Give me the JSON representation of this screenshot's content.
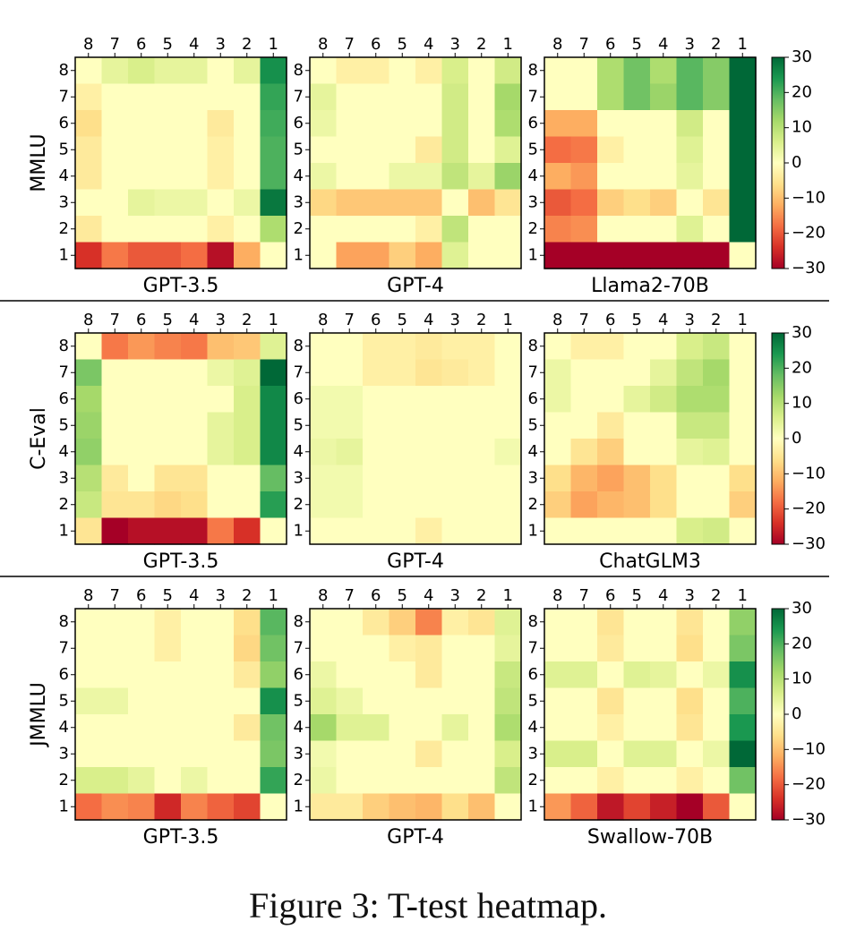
{
  "caption": "Figure 3: T-test heatmap.",
  "chart_data": {
    "type": "heatmap",
    "x_tick_labels": [
      "8",
      "7",
      "6",
      "5",
      "4",
      "3",
      "2",
      "1"
    ],
    "y_tick_labels": [
      "8",
      "7",
      "6",
      "5",
      "4",
      "3",
      "2",
      "1"
    ],
    "colormap": "RdYlGn",
    "colorbar": {
      "vmin": -30,
      "vmax": 30,
      "ticks": [
        30,
        20,
        10,
        0,
        -10,
        -20,
        -30
      ]
    },
    "rows": [
      {
        "ylabel": "MMLU",
        "panels": [
          {
            "title": "GPT-3.5",
            "values": [
              [
                0,
                4,
                6,
                4,
                4,
                0,
                4,
                25
              ],
              [
                -3,
                0,
                0,
                0,
                0,
                0,
                0,
                22
              ],
              [
                -6,
                0,
                0,
                0,
                0,
                -4,
                0,
                21
              ],
              [
                -4,
                0,
                0,
                0,
                0,
                -3,
                0,
                20
              ],
              [
                -4,
                0,
                0,
                0,
                0,
                -3,
                0,
                20
              ],
              [
                0,
                0,
                4,
                3,
                3,
                0,
                3,
                28
              ],
              [
                -4,
                0,
                0,
                0,
                0,
                -3,
                0,
                11
              ],
              [
                -24,
                -17,
                -20,
                -20,
                -18,
                -28,
                -12,
                0
              ]
            ]
          },
          {
            "title": "GPT-4",
            "values": [
              [
                0,
                -3,
                -3,
                0,
                -3,
                6,
                0,
                7
              ],
              [
                4,
                0,
                0,
                0,
                0,
                7,
                0,
                12
              ],
              [
                3,
                0,
                0,
                0,
                0,
                7,
                0,
                11
              ],
              [
                0,
                0,
                0,
                0,
                -4,
                7,
                0,
                5
              ],
              [
                3,
                0,
                0,
                3,
                3,
                9,
                4,
                13
              ],
              [
                -7,
                -9,
                -9,
                -9,
                -9,
                0,
                -10,
                -5
              ],
              [
                0,
                0,
                0,
                0,
                -3,
                9,
                0,
                0
              ],
              [
                0,
                -13,
                -13,
                -8,
                -12,
                5,
                0,
                0
              ]
            ]
          },
          {
            "title": "Llama2-70B",
            "values": [
              [
                0,
                0,
                11,
                17,
                11,
                19,
                15,
                30
              ],
              [
                0,
                0,
                11,
                17,
                13,
                19,
                15,
                30
              ],
              [
                -12,
                -12,
                0,
                0,
                0,
                7,
                0,
                30
              ],
              [
                -18,
                -17,
                -3,
                0,
                0,
                5,
                0,
                30
              ],
              [
                -12,
                -14,
                0,
                0,
                0,
                4,
                0,
                30
              ],
              [
                -20,
                -18,
                -8,
                -6,
                -8,
                0,
                -5,
                30
              ],
              [
                -16,
                -15,
                0,
                0,
                0,
                5,
                0,
                30
              ],
              [
                -30,
                -30,
                -30,
                -30,
                -30,
                -30,
                -30,
                0
              ]
            ]
          }
        ]
      },
      {
        "ylabel": "C-Eval",
        "panels": [
          {
            "title": "GPT-3.5",
            "values": [
              [
                0,
                -17,
                -14,
                -16,
                -17,
                -10,
                -9,
                5
              ],
              [
                16,
                0,
                0,
                0,
                0,
                3,
                5,
                30
              ],
              [
                12,
                0,
                0,
                0,
                0,
                0,
                6,
                26
              ],
              [
                13,
                0,
                0,
                0,
                0,
                4,
                6,
                26
              ],
              [
                14,
                0,
                0,
                0,
                0,
                4,
                6,
                26
              ],
              [
                10,
                -4,
                0,
                -5,
                -5,
                0,
                0,
                18
              ],
              [
                8,
                -5,
                -5,
                -7,
                -6,
                0,
                0,
                23
              ],
              [
                -5,
                -30,
                -28,
                -28,
                -28,
                -17,
                -24,
                0
              ]
            ]
          },
          {
            "title": "GPT-4",
            "values": [
              [
                0,
                0,
                -3,
                -3,
                -4,
                -3,
                -3,
                0
              ],
              [
                0,
                0,
                -3,
                -3,
                -5,
                -4,
                -3,
                0
              ],
              [
                2,
                2,
                0,
                0,
                0,
                0,
                0,
                0
              ],
              [
                2,
                2,
                0,
                0,
                0,
                0,
                0,
                0
              ],
              [
                3,
                4,
                0,
                0,
                0,
                0,
                0,
                2
              ],
              [
                2,
                2,
                0,
                0,
                0,
                0,
                0,
                0
              ],
              [
                2,
                2,
                0,
                0,
                0,
                0,
                0,
                0
              ],
              [
                0,
                0,
                0,
                0,
                -3,
                0,
                0,
                0
              ]
            ]
          },
          {
            "title": "ChatGLM3",
            "values": [
              [
                0,
                -3,
                -3,
                0,
                0,
                6,
                8,
                0
              ],
              [
                3,
                0,
                0,
                0,
                4,
                9,
                12,
                0
              ],
              [
                3,
                0,
                0,
                4,
                7,
                11,
                11,
                0
              ],
              [
                0,
                0,
                -4,
                0,
                0,
                8,
                8,
                0
              ],
              [
                0,
                -5,
                -8,
                0,
                0,
                4,
                5,
                0
              ],
              [
                -6,
                -11,
                -13,
                -10,
                -6,
                0,
                0,
                -6
              ],
              [
                -8,
                -13,
                -11,
                -10,
                -6,
                0,
                0,
                -8
              ],
              [
                0,
                0,
                0,
                0,
                0,
                6,
                7,
                0
              ]
            ]
          }
        ]
      },
      {
        "ylabel": "JMMLU",
        "panels": [
          {
            "title": "GPT-3.5",
            "values": [
              [
                0,
                0,
                0,
                -3,
                0,
                0,
                -6,
                19
              ],
              [
                0,
                0,
                0,
                -3,
                0,
                0,
                -7,
                17
              ],
              [
                0,
                0,
                0,
                0,
                0,
                0,
                -4,
                14
              ],
              [
                3,
                3,
                0,
                0,
                0,
                0,
                0,
                25
              ],
              [
                0,
                0,
                0,
                0,
                0,
                0,
                -4,
                17
              ],
              [
                0,
                0,
                0,
                0,
                0,
                0,
                0,
                16
              ],
              [
                6,
                6,
                4,
                0,
                3,
                0,
                0,
                22
              ],
              [
                -18,
                -15,
                -16,
                -25,
                -16,
                -19,
                -22,
                0
              ]
            ]
          },
          {
            "title": "GPT-4",
            "values": [
              [
                0,
                0,
                -4,
                -8,
                -16,
                -3,
                -5,
                5
              ],
              [
                0,
                0,
                0,
                -3,
                -4,
                0,
                0,
                4
              ],
              [
                3,
                0,
                0,
                0,
                -4,
                0,
                0,
                8
              ],
              [
                5,
                3,
                0,
                0,
                0,
                0,
                0,
                9
              ],
              [
                12,
                5,
                5,
                0,
                0,
                4,
                0,
                11
              ],
              [
                2,
                0,
                0,
                0,
                -4,
                0,
                0,
                6
              ],
              [
                3,
                0,
                0,
                0,
                0,
                0,
                0,
                9
              ],
              [
                -4,
                -4,
                -8,
                -10,
                -11,
                -6,
                -10,
                0
              ]
            ]
          },
          {
            "title": "Swallow-70B",
            "values": [
              [
                0,
                0,
                -5,
                0,
                0,
                -5,
                0,
                14
              ],
              [
                0,
                0,
                -4,
                0,
                0,
                -6,
                0,
                16
              ],
              [
                5,
                5,
                0,
                5,
                4,
                0,
                3,
                25
              ],
              [
                0,
                0,
                -5,
                0,
                0,
                -6,
                0,
                20
              ],
              [
                0,
                0,
                -3,
                0,
                0,
                -5,
                0,
                24
              ],
              [
                6,
                6,
                0,
                5,
                5,
                0,
                3,
                30
              ],
              [
                0,
                0,
                -3,
                0,
                0,
                -3,
                0,
                17
              ],
              [
                -14,
                -19,
                -27,
                -22,
                -26,
                -30,
                -20,
                0
              ]
            ]
          }
        ]
      }
    ]
  }
}
